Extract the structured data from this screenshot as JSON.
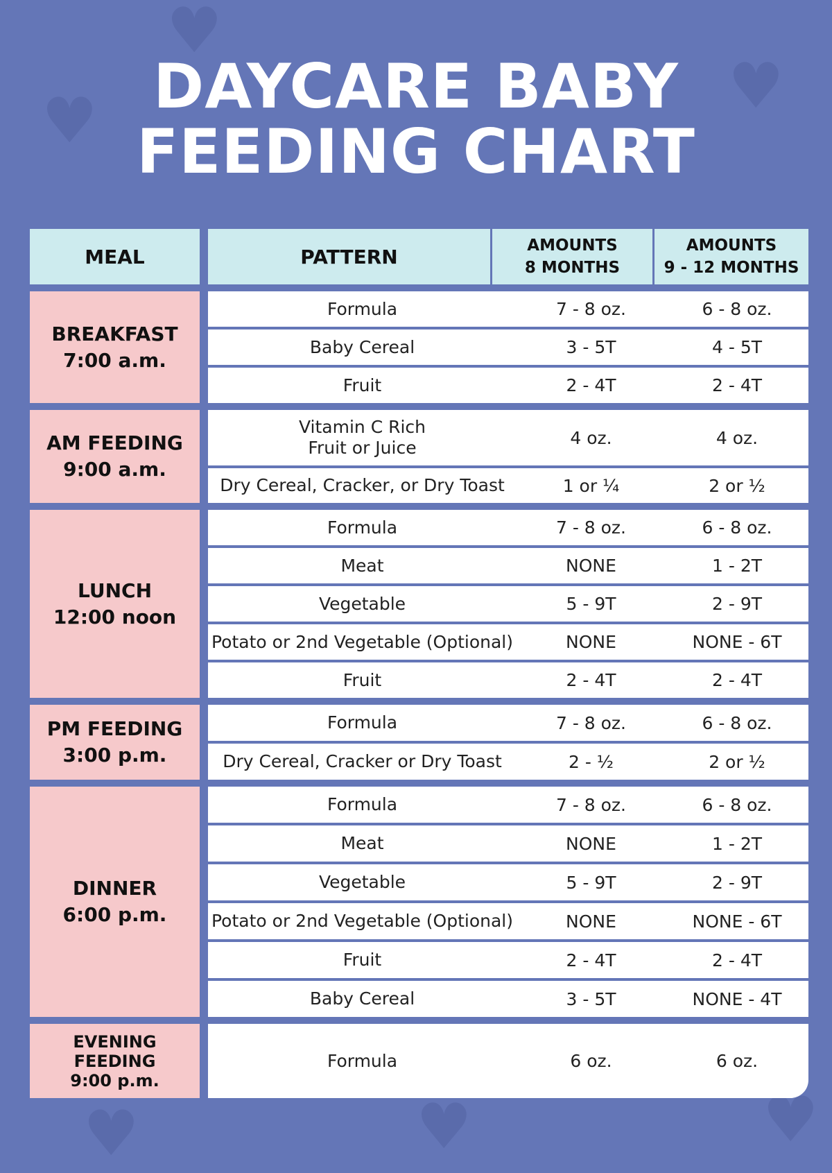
{
  "title": "DAYCARE BABY\nFEEDING CHART",
  "colors": {
    "background": "#6476b7",
    "header": "#cdebee",
    "meal_cell": "#f6c9cb",
    "row": "#ffffff"
  },
  "headers": {
    "meal": "MEAL",
    "pattern": "PATTERN",
    "amounts_8": "AMOUNTS\n8 MONTHS",
    "amounts_9_12": "AMOUNTS\n9 - 12 MONTHS"
  },
  "groups": [
    {
      "meal": "BREAKFAST\n7:00 a.m.",
      "rows": [
        [
          "Formula",
          "7 - 8  oz.",
          "6 - 8 oz."
        ],
        [
          "Baby Cereal",
          "3 - 5T",
          "4 - 5T"
        ],
        [
          "Fruit",
          "2 - 4T",
          "2 - 4T"
        ]
      ]
    },
    {
      "meal": "AM FEEDING\n9:00 a.m.",
      "rows": [
        [
          "Vitamin C Rich\nFruit or Juice",
          "4 oz.",
          "4 oz."
        ],
        [
          "Dry Cereal, Cracker, or Dry Toast",
          "1 or ¼",
          "2 or ½"
        ]
      ]
    },
    {
      "meal": "LUNCH\n12:00 noon",
      "rows": [
        [
          "Formula",
          "7 - 8 oz.",
          "6 - 8 oz."
        ],
        [
          "Meat",
          "NONE",
          "1 - 2T"
        ],
        [
          "Vegetable",
          "5 - 9T",
          "2 - 9T"
        ],
        [
          "Potato or 2nd Vegetable (Optional)",
          "NONE",
          "NONE - 6T"
        ],
        [
          "Fruit",
          "2 - 4T",
          "2 - 4T"
        ]
      ]
    },
    {
      "meal": "PM FEEDING\n3:00 p.m.",
      "rows": [
        [
          "Formula",
          "7 - 8 oz.",
          "6 - 8 oz."
        ],
        [
          "Dry Cereal, Cracker or Dry Toast",
          "2 - ½",
          "2 or ½"
        ]
      ]
    },
    {
      "meal": "DINNER\n6:00 p.m.",
      "rows": [
        [
          "Formula",
          "7 - 8 oz.",
          "6 - 8 oz."
        ],
        [
          "Meat",
          "NONE",
          "1 - 2T"
        ],
        [
          "Vegetable",
          "5 - 9T",
          "2 - 9T"
        ],
        [
          "Potato or 2nd Vegetable (Optional)",
          "NONE",
          "NONE - 6T"
        ],
        [
          "Fruit",
          "2 - 4T",
          "2 - 4T"
        ],
        [
          "Baby Cereal",
          "3 - 5T",
          "NONE - 4T"
        ]
      ]
    },
    {
      "meal": "EVENING\nFEEDING\n9:00 p.m.",
      "rows": [
        [
          "Formula",
          "6 oz.",
          "6 oz."
        ]
      ]
    }
  ]
}
